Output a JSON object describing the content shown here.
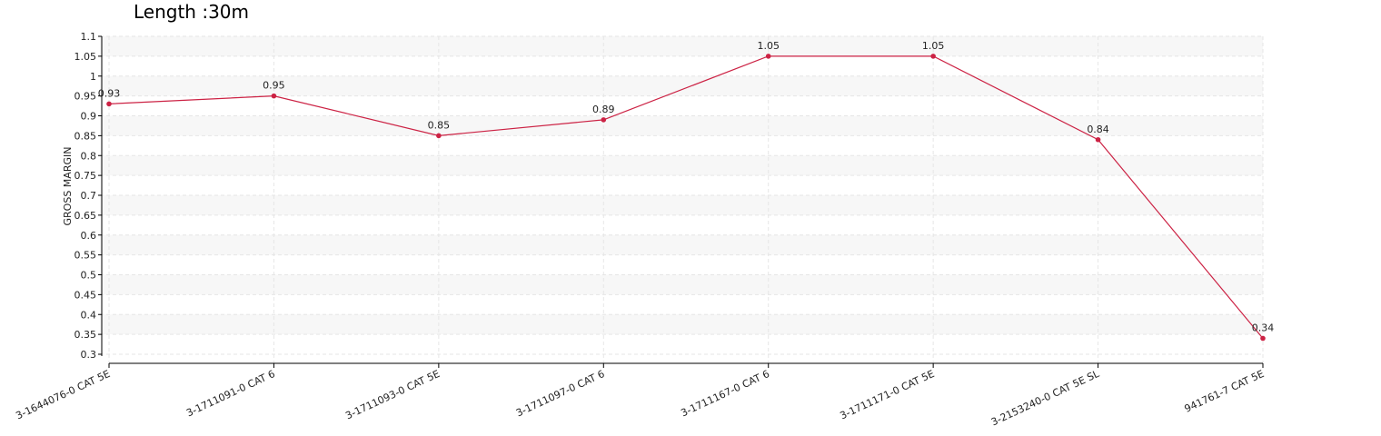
{
  "chart_data": {
    "type": "line",
    "title": "Length :30m",
    "xlabel": "",
    "ylabel": "GROSS MARGIN",
    "categories": [
      "3-1644076-0 CAT 5E",
      "3-1711091-0 CAT 6",
      "3-1711093-0 CAT 5E",
      "3-1711097-0 CAT 6",
      "3-1711167-0 CAT 6",
      "3-1711171-0 CAT 5E",
      "3-2153240-0 CAT 5E SL",
      "941761-7 CAT 5E"
    ],
    "series": [
      {
        "values": [
          0.93,
          0.95,
          0.85,
          0.89,
          1.05,
          1.05,
          0.84,
          0.34
        ],
        "labels": [
          "0.93",
          "0.95",
          "0.85",
          "0.89",
          "1.05",
          "1.05",
          "0.84",
          "0.34"
        ],
        "color": "#cc2244"
      }
    ],
    "yticks": [
      "0.3",
      "0.35",
      "0.4",
      "0.45",
      "0.5",
      "0.55",
      "0.6",
      "0.65",
      "0.7",
      "0.75",
      "0.8",
      "0.85",
      "0.9",
      "0.95",
      "1",
      "1.05",
      "1.1"
    ],
    "ylim": [
      0.3,
      1.1
    ],
    "grid": true,
    "gridColor": "#e6e6e6",
    "bandColor": "#f7f7f7",
    "axisColor": "#000000"
  }
}
